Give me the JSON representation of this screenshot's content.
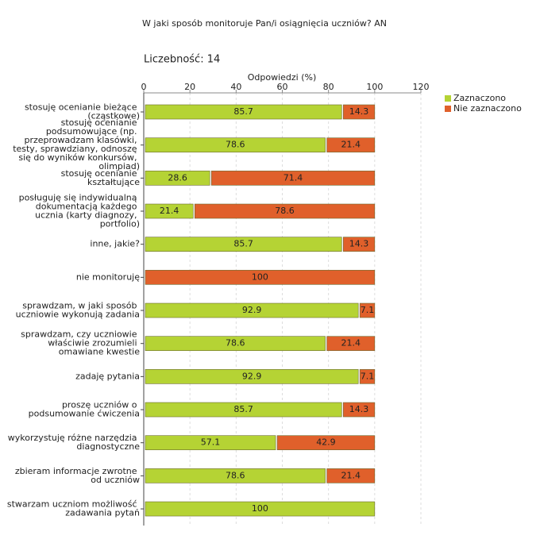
{
  "chart_data": {
    "type": "stacked_barh",
    "title": "W jaki sposób monitoruje Pan/i osiągnięcia uczniów?  AN",
    "subtitle": "Liczebność: 14",
    "x_label": "Odpowiedzi (%)",
    "categories": [
      "stosuję ocenianie bieżące (cząstkowe)",
      "stosuję ocenianie podsumowujące (np. przeprowadzam klasówki, testy, sprawdziany, odnoszę się do wyników konkursów, olimpiad)",
      "stosuję ocenianie kształtujące",
      "posługuję się indywidualną dokumentacją każdego ucznia (karty diagnozy, portfolio)",
      "inne, jakie?",
      "nie monitoruję",
      "sprawdzam, w jaki sposób uczniowie wykonują zadania",
      "sprawdzam, czy uczniowie właściwie zrozumieli omawiane kwestie",
      "zadaję pytania",
      "proszę uczniów o podsumowanie ćwiczenia",
      "wykorzystuję różne narzędzia diagnostyczne",
      "zbieram informacje zwrotne od uczniów",
      "stwarzam uczniom możliwość zadawania pytań"
    ],
    "series": [
      {
        "name": "Zaznaczono",
        "color": "#b5d334",
        "values": [
          85.7,
          78.6,
          28.6,
          21.4,
          85.7,
          0,
          92.9,
          78.6,
          92.9,
          85.7,
          57.1,
          78.6,
          100
        ]
      },
      {
        "name": "Nie zaznaczono",
        "color": "#e0602b",
        "values": [
          14.3,
          21.4,
          71.4,
          78.6,
          14.3,
          100,
          7.1,
          21.4,
          7.1,
          14.3,
          42.9,
          21.4,
          0
        ]
      }
    ],
    "xlim": [
      0,
      120
    ],
    "xticks": [
      0,
      20,
      40,
      60,
      80,
      100,
      120
    ],
    "grid": true,
    "legend": "right"
  }
}
